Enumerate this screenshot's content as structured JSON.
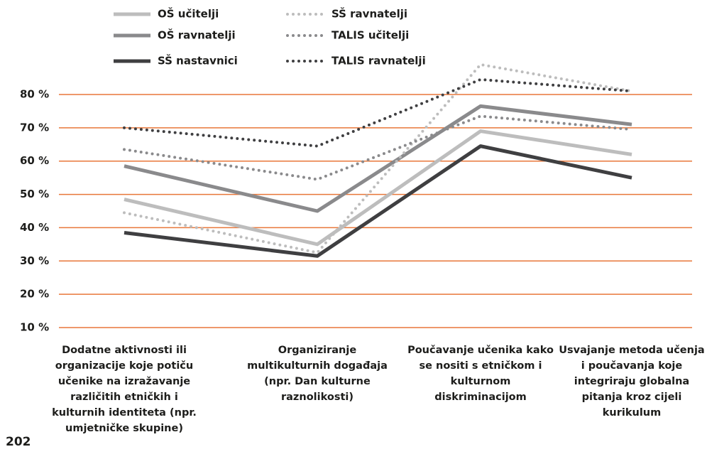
{
  "chart_data": {
    "type": "line",
    "categories": [
      "Dodatne aktivnosti ili organizacije koje potiču učenike na izražavanje različitih etničkih i kulturnih identiteta (npr. umjetničke skupine)",
      "Organiziranje multikulturnih događaja (npr. Dan kulturne raznolikosti)",
      "Poučavanje učenika kako se nositi s etničkom i kulturnom diskriminacijom",
      "Usvajanje metoda učenja i poučavanja koje integriraju globalna pitanja kroz cijeli kurikulum"
    ],
    "series": [
      {
        "name": "OŠ učitelji",
        "color": "#bdbdbd",
        "style": "solid",
        "values": [
          48.5,
          35,
          69,
          62
        ]
      },
      {
        "name": "OŠ ravnatelji",
        "color": "#8a8a8c",
        "style": "solid",
        "values": [
          58.5,
          45,
          76.5,
          71
        ]
      },
      {
        "name": "SŠ nastavnici",
        "color": "#3f3f41",
        "style": "solid",
        "values": [
          38.5,
          31.5,
          64.5,
          55
        ]
      },
      {
        "name": "SŠ ravnatelji",
        "color": "#bdbdbd",
        "style": "dotted",
        "values": [
          44.5,
          32.5,
          89,
          81
        ]
      },
      {
        "name": "TALIS učitelji",
        "color": "#8a8a8c",
        "style": "dotted",
        "values": [
          63.5,
          54.5,
          73.5,
          69.5
        ]
      },
      {
        "name": "TALIS ravnatelji",
        "color": "#3f3f41",
        "style": "dotted",
        "values": [
          70,
          64.5,
          84.5,
          81
        ]
      }
    ],
    "ylim": [
      10,
      80
    ],
    "yticks": [
      {
        "value": 10,
        "label": "10 %"
      },
      {
        "value": 20,
        "label": "20 %"
      },
      {
        "value": 30,
        "label": "30 %"
      },
      {
        "value": 40,
        "label": "40 %"
      },
      {
        "value": 50,
        "label": "50 %"
      },
      {
        "value": 60,
        "label": "60 %"
      },
      {
        "value": 70,
        "label": "70 %"
      },
      {
        "value": 80,
        "label": "80 %"
      }
    ],
    "grid": true,
    "grid_color": "#e8773a",
    "page_number": "202"
  }
}
